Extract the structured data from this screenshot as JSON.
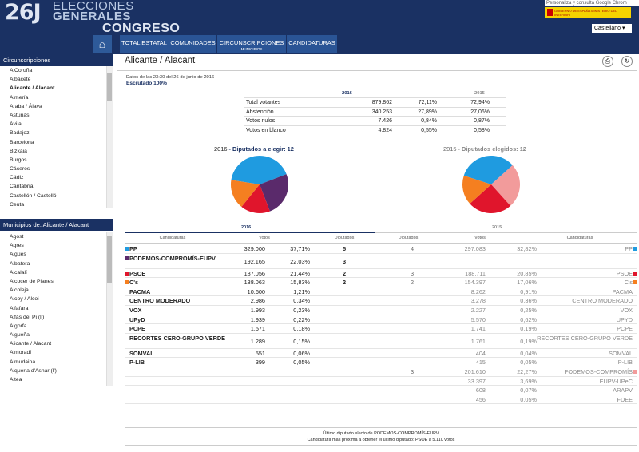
{
  "header": {
    "logo_num": "26J",
    "logo_line1": "ELECCIONES",
    "logo_line2": "GENERALES",
    "logo_congreso": "CONGRESO",
    "personalize": "Personaliza y consulta Google Chrom",
    "gov_name": "GOBIERNO DE ESPAÑA  MINISTERIO DEL INTERIOR",
    "language": "Castellano ▾",
    "home_icon": "⌂"
  },
  "nav": [
    {
      "label": "TOTAL ESTATAL",
      "sub": ""
    },
    {
      "label": "COMUNIDADES",
      "sub": ""
    },
    {
      "label": "CIRCUNSCRIPCIONES",
      "sub": "MUNICIPIOS"
    },
    {
      "label": "CANDIDATURAS",
      "sub": ""
    }
  ],
  "sidebar": {
    "circ_title": "Circunscripciones",
    "circ_items": [
      "A Coruña",
      "Albacete",
      "Alicante / Alacant",
      "Almería",
      "Araba / Álava",
      "Asturias",
      "Ávila",
      "Badajoz",
      "Barcelona",
      "Bizkaia",
      "Burgos",
      "Cáceres",
      "Cádiz",
      "Cantabria",
      "Castellón / Castelló",
      "Ceuta"
    ],
    "circ_selected": "Alicante / Alacant",
    "mun_title": "Municipios de: Alicante / Alacant",
    "mun_items": [
      "Agost",
      "Agres",
      "Aigües",
      "Albatera",
      "Alcalalí",
      "Alcocer de Planes",
      "Alcoleja",
      "Alcoy / Alcoi",
      "Alfafara",
      "Alfàs del Pi (l')",
      "Algorfa",
      "Algueña",
      "Alicante / Alacant",
      "Almoradí",
      "Almudaina",
      "Alqueria d'Asnar (l')",
      "Altea"
    ]
  },
  "main": {
    "title": "Alicante / Alacant",
    "print_icon": "⎙",
    "refresh_icon": "↻",
    "data_info": "Datos de las  23:30  del 26 de junio de 2016",
    "escrutado": "Escrutado 100%",
    "year_2016": "2016",
    "year_2015": "2015",
    "summary": [
      {
        "label": "Total votantes",
        "v16": "879.862",
        "p16": "72,11%",
        "p15": "72,94%"
      },
      {
        "label": "Abstención",
        "v16": "340.253",
        "p16": "27,89%",
        "p15": "27,06%"
      },
      {
        "label": "Votos nulos",
        "v16": "7.426",
        "p16": "0,84%",
        "p15": "0,87%"
      },
      {
        "label": "Votos en blanco",
        "v16": "4.824",
        "p16": "0,55%",
        "p15": "0,58%"
      }
    ],
    "pie2016_year": "2016",
    "pie2016_label": " - Diputados a elegir: 12",
    "pie2015_year": "2015",
    "pie2015_label": " - Diputados elegidos: 12",
    "col_candidaturas": "Candidaturas",
    "col_votos": "Votos",
    "col_diputados": "Diputados",
    "footer1": "Último diputado electo de PODEMOS-COMPROMÍS-EUPV",
    "footer2": "Candidatura más próxima a obtener el último diputado: PSOE a 5.110 votos"
  },
  "colors": {
    "pp": "#1f9be0",
    "podemos": "#5a2a6b",
    "psoe": "#e0152c",
    "cs": "#f57f20",
    "podemos15": "#f29b9b",
    "navy": "#1a3163"
  },
  "pie2016": [
    {
      "party": "PP",
      "seats": 5,
      "color": "#1f9be0"
    },
    {
      "party": "PODEMOS-COMPROMÍS-EUPV",
      "seats": 3,
      "color": "#5a2a6b"
    },
    {
      "party": "PSOE",
      "seats": 2,
      "color": "#e0152c"
    },
    {
      "party": "C's",
      "seats": 2,
      "color": "#f57f20"
    }
  ],
  "pie2015": [
    {
      "party": "PP",
      "seats": 4,
      "color": "#1f9be0"
    },
    {
      "party": "PODEMOS-COMPROMÍS",
      "seats": 3,
      "color": "#f29b9b"
    },
    {
      "party": "PSOE",
      "seats": 3,
      "color": "#e0152c"
    },
    {
      "party": "C's",
      "seats": 2,
      "color": "#f57f20"
    }
  ],
  "rows": [
    {
      "name": "PP",
      "v16": "329.000",
      "p16": "37,71%",
      "d16": "5",
      "d15": "4",
      "v15": "297.083",
      "p15": "32,82%",
      "n15": "PP",
      "c16": "#1f9be0",
      "c15": "#1f9be0"
    },
    {
      "name": "PODEMOS-COMPROMÍS-EUPV",
      "v16": "192.165",
      "p16": "22,03%",
      "d16": "3",
      "d15": "",
      "v15": "",
      "p15": "",
      "n15": "",
      "c16": "#5a2a6b",
      "c15": ""
    },
    {
      "name": "PSOE",
      "v16": "187.056",
      "p16": "21,44%",
      "d16": "2",
      "d15": "3",
      "v15": "188.711",
      "p15": "20,85%",
      "n15": "PSOE",
      "c16": "#e0152c",
      "c15": "#e0152c"
    },
    {
      "name": "C's",
      "v16": "138.063",
      "p16": "15,83%",
      "d16": "2",
      "d15": "2",
      "v15": "154.397",
      "p15": "17,06%",
      "n15": "C's",
      "c16": "#f57f20",
      "c15": "#f57f20"
    },
    {
      "name": "PACMA",
      "v16": "10.600",
      "p16": "1,21%",
      "d16": "",
      "d15": "",
      "v15": "8.262",
      "p15": "0,91%",
      "n15": "PACMA",
      "c16": "",
      "c15": ""
    },
    {
      "name": "CENTRO MODERADO",
      "v16": "2.986",
      "p16": "0,34%",
      "d16": "",
      "d15": "",
      "v15": "3.278",
      "p15": "0,36%",
      "n15": "CENTRO MODERADO",
      "c16": "",
      "c15": ""
    },
    {
      "name": "VOX",
      "v16": "1.993",
      "p16": "0,23%",
      "d16": "",
      "d15": "",
      "v15": "2.227",
      "p15": "0,25%",
      "n15": "VOX",
      "c16": "",
      "c15": ""
    },
    {
      "name": "UPyD",
      "v16": "1.939",
      "p16": "0,22%",
      "d16": "",
      "d15": "",
      "v15": "5.570",
      "p15": "0,62%",
      "n15": "UPYD",
      "c16": "",
      "c15": ""
    },
    {
      "name": "PCPE",
      "v16": "1.571",
      "p16": "0,18%",
      "d16": "",
      "d15": "",
      "v15": "1.741",
      "p15": "0,19%",
      "n15": "PCPE",
      "c16": "",
      "c15": ""
    },
    {
      "name": "RECORTES CERO-GRUPO VERDE",
      "v16": "1.289",
      "p16": "0,15%",
      "d16": "",
      "d15": "",
      "v15": "1.761",
      "p15": "0,19%",
      "n15": "RECORTES CERO-GRUPO VERDE",
      "c16": "",
      "c15": ""
    },
    {
      "name": "SOMVAL",
      "v16": "551",
      "p16": "0,06%",
      "d16": "",
      "d15": "",
      "v15": "404",
      "p15": "0,04%",
      "n15": "SOMVAL",
      "c16": "",
      "c15": ""
    },
    {
      "name": "P-LIB",
      "v16": "399",
      "p16": "0,05%",
      "d16": "",
      "d15": "",
      "v15": "415",
      "p15": "0,05%",
      "n15": "P-LIB",
      "c16": "",
      "c15": ""
    },
    {
      "name": "",
      "v16": "",
      "p16": "",
      "d16": "",
      "d15": "3",
      "v15": "201.610",
      "p15": "22,27%",
      "n15": "PODEMOS-COMPROMÍS",
      "c16": "",
      "c15": "#f29b9b"
    },
    {
      "name": "",
      "v16": "",
      "p16": "",
      "d16": "",
      "d15": "",
      "v15": "33.397",
      "p15": "3,69%",
      "n15": "EUPV-UPeC",
      "c16": "",
      "c15": ""
    },
    {
      "name": "",
      "v16": "",
      "p16": "",
      "d16": "",
      "d15": "",
      "v15": "608",
      "p15": "0,07%",
      "n15": "ARAPV",
      "c16": "",
      "c15": ""
    },
    {
      "name": "",
      "v16": "",
      "p16": "",
      "d16": "",
      "d15": "",
      "v15": "456",
      "p15": "0,05%",
      "n15": "FDEE",
      "c16": "",
      "c15": ""
    }
  ]
}
